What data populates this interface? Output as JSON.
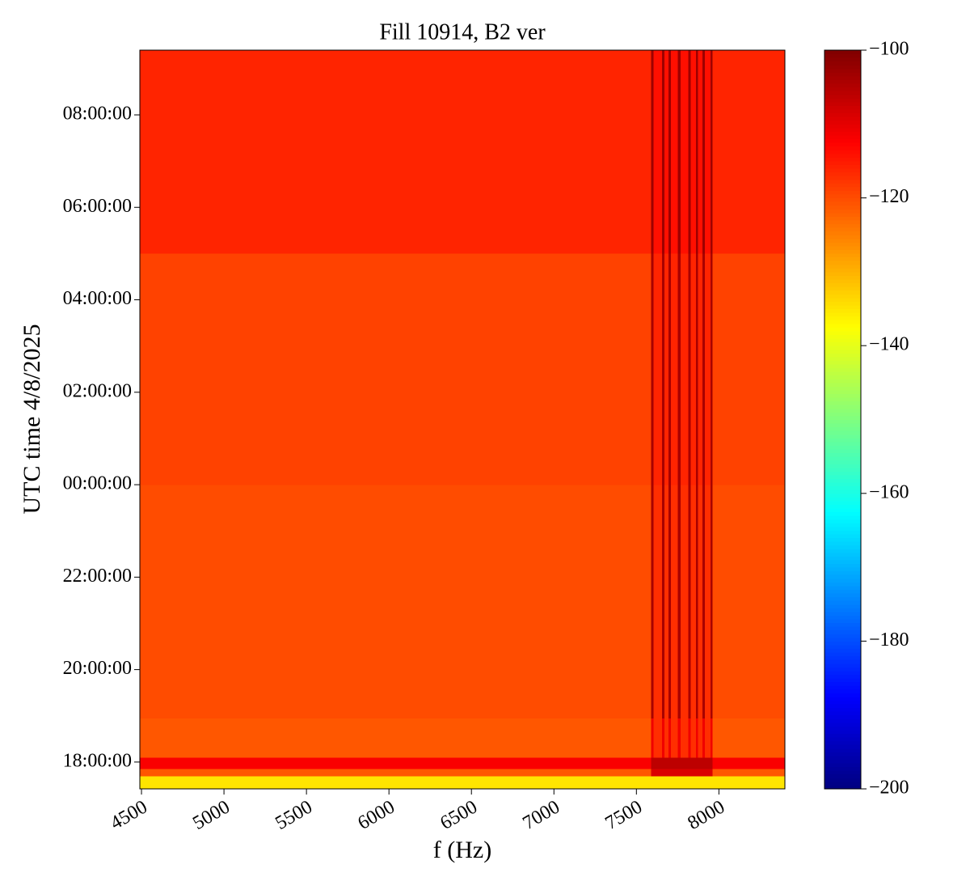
{
  "chart_data": {
    "type": "heatmap",
    "title": "Fill 10914, B2 ver",
    "x_label": "f (Hz)",
    "y_label": "UTC time 4/8/2025",
    "colormap": "jet",
    "xbins": [
      4490,
      7590,
      7605,
      7655,
      7670,
      7695,
      7708,
      7752,
      7767,
      7815,
      7830,
      7860,
      7874,
      7900,
      7914,
      7950,
      7962,
      8400
    ],
    "ybins": [
      -6.58,
      -6.3,
      -6.15,
      -5.9,
      -5.05,
      0,
      5,
      9.4
    ],
    "z": [
      [
        -135,
        -135,
        -135,
        -135,
        -135,
        -135,
        -135,
        -135,
        -135,
        -135,
        -135,
        -135,
        -135,
        -135,
        -135,
        -135,
        -135
      ],
      [
        -121,
        -109,
        -109,
        -109,
        -109,
        -109,
        -109,
        -109,
        -109,
        -109,
        -109,
        -109,
        -109,
        -109,
        -109,
        -109,
        -121
      ],
      [
        -112,
        -106,
        -106,
        -106,
        -106,
        -106,
        -106,
        -106,
        -106,
        -106,
        -106,
        -106,
        -106,
        -106,
        -106,
        -106,
        -112
      ],
      [
        -121,
        -111,
        -117,
        -111,
        -117,
        -111,
        -117,
        -111,
        -117,
        -111,
        -117,
        -111,
        -117,
        -111,
        -117,
        -111,
        -121
      ],
      [
        -120,
        -104,
        -117,
        -104,
        -117,
        -104,
        -117,
        -104,
        -117,
        -104,
        -117,
        -104,
        -117,
        -104,
        -117,
        -104,
        -120
      ],
      [
        -119,
        -104,
        -116,
        -104,
        -116,
        -104,
        -116,
        -104,
        -116,
        -104,
        -116,
        -104,
        -116,
        -104,
        -116,
        -104,
        -119
      ],
      [
        -116,
        -103,
        -114,
        -103,
        -114,
        -103,
        -114,
        -103,
        -114,
        -103,
        -114,
        -103,
        -114,
        -103,
        -114,
        -103,
        -116
      ]
    ],
    "xlim": [
      4490,
      8400
    ],
    "ylim": [
      -6.58,
      9.4
    ],
    "xticks": [
      4500,
      5000,
      5500,
      6000,
      6500,
      7000,
      7500,
      8000
    ],
    "yticks": [
      {
        "value": -6,
        "label": "18:00:00"
      },
      {
        "value": -4,
        "label": "20:00:00"
      },
      {
        "value": -2,
        "label": "22:00:00"
      },
      {
        "value": 0,
        "label": "00:00:00"
      },
      {
        "value": 2,
        "label": "02:00:00"
      },
      {
        "value": 4,
        "label": "04:00:00"
      },
      {
        "value": 6,
        "label": "06:00:00"
      },
      {
        "value": 8,
        "label": "08:00:00"
      }
    ],
    "clim": [
      -200,
      -100
    ],
    "cticks": [
      {
        "value": -200,
        "label": "−200"
      },
      {
        "value": -180,
        "label": "−180"
      },
      {
        "value": -160,
        "label": "−160"
      },
      {
        "value": -140,
        "label": "−140"
      },
      {
        "value": -120,
        "label": "−120"
      },
      {
        "value": -100,
        "label": "−100"
      }
    ]
  }
}
